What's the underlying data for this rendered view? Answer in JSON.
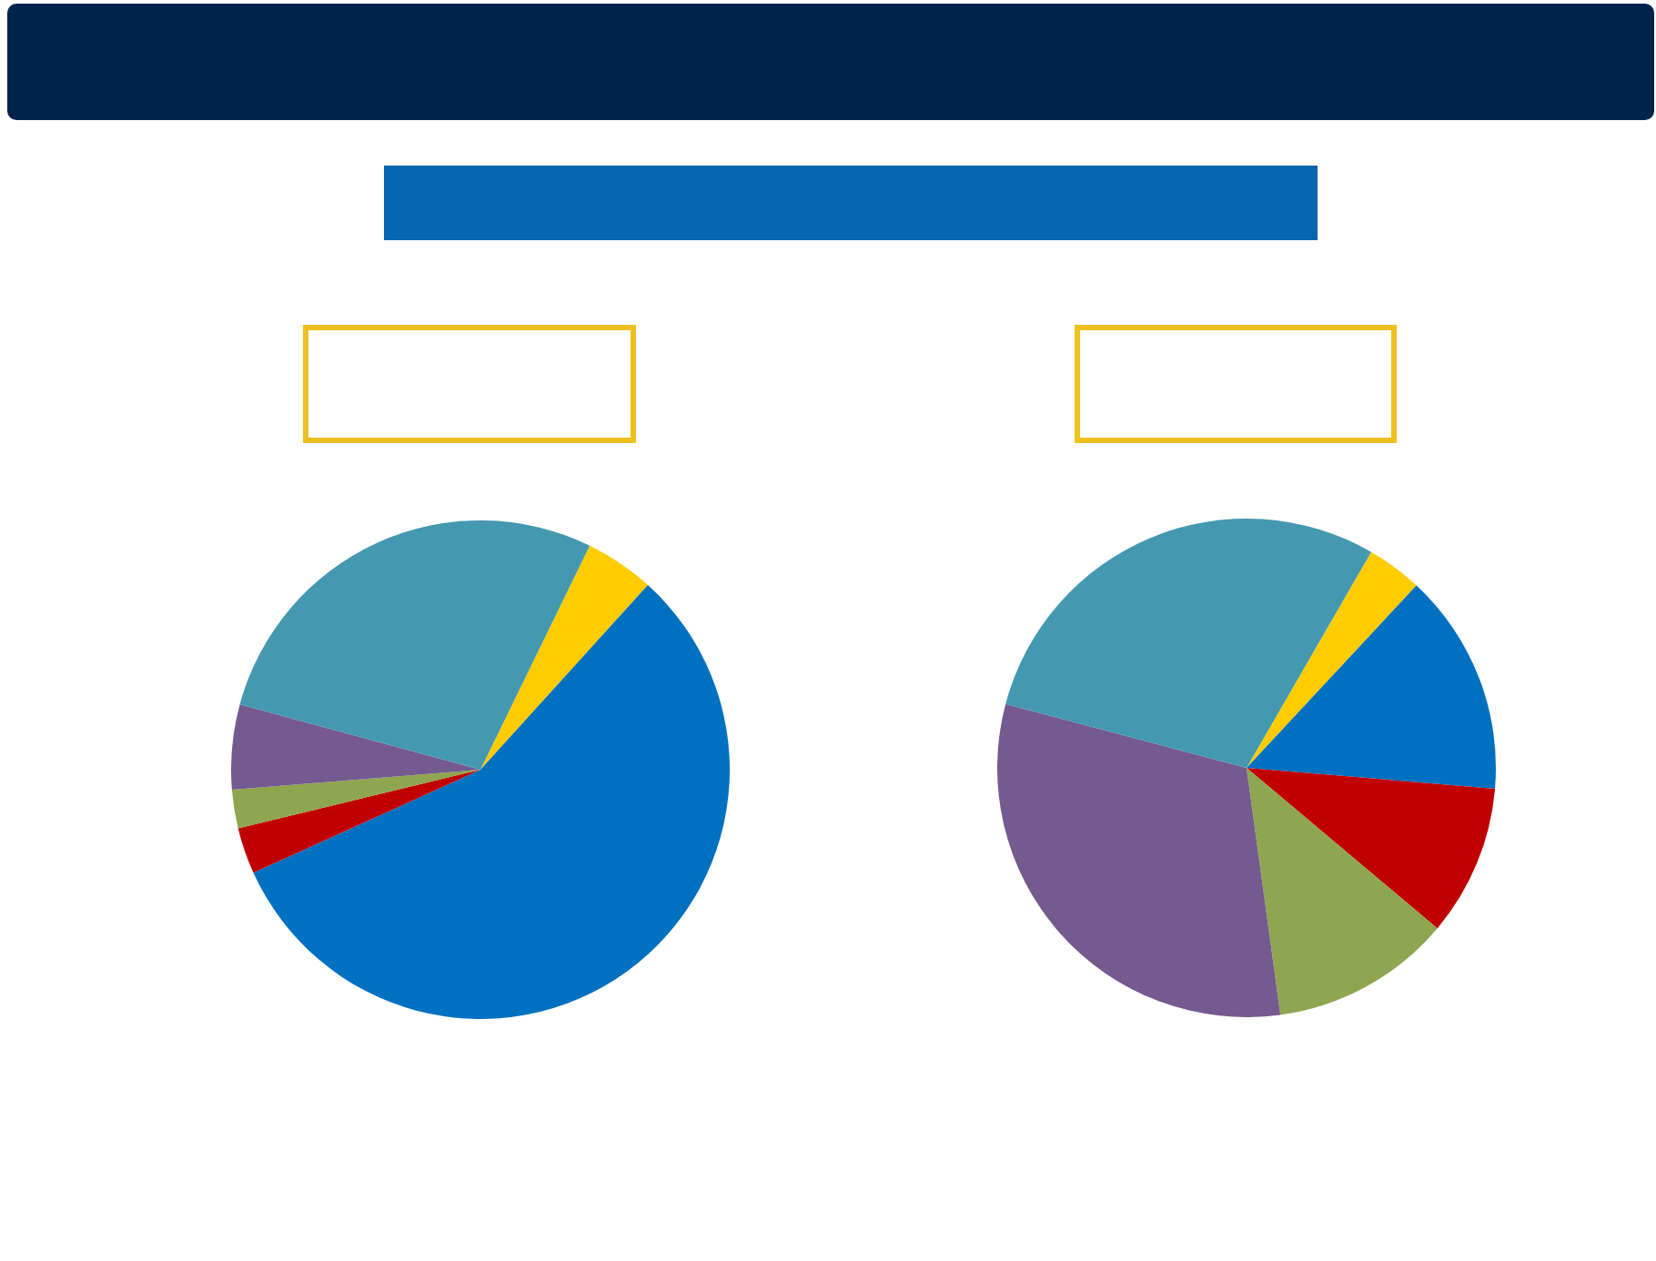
{
  "chart_data": [
    {
      "type": "pie",
      "categories": [
        null,
        null,
        null,
        null,
        null,
        null
      ],
      "values": [
        4.5,
        56.5,
        3,
        2.5,
        5.5,
        28
      ],
      "colors": [
        "#ffcc00",
        "#0070c0",
        "#c00000",
        "#8ea64f",
        "#745a8f",
        "#4499b0"
      ]
    },
    {
      "type": "pie",
      "categories": [
        null,
        null,
        null,
        null,
        null,
        null
      ],
      "values": [
        3.6,
        14.4,
        9.8,
        11.7,
        31.3,
        29.2
      ],
      "colors": [
        "#ffcc00",
        "#0070c0",
        "#c00000",
        "#8ea64f",
        "#745a8f",
        "#4499b0"
      ]
    }
  ]
}
